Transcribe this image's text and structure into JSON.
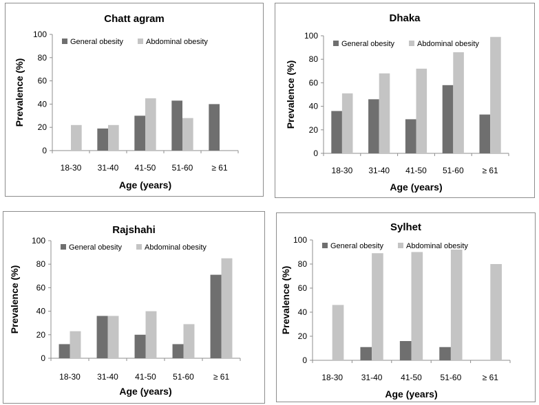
{
  "colors": {
    "general": "#6f6f6f",
    "abdominal": "#c4c4c4",
    "axis": "#8c8c8c"
  },
  "chart_data": [
    {
      "type": "bar",
      "title": "Chatt agram",
      "categories": [
        "18-30",
        "31-40",
        "41-50",
        "51-60",
        "≥ 61"
      ],
      "series": [
        {
          "name": "General obesity",
          "values": [
            0,
            19,
            30,
            43,
            40
          ]
        },
        {
          "name": "Abdominal obesity",
          "values": [
            22,
            22,
            45,
            28,
            0
          ]
        }
      ],
      "xlabel": "Age (years)",
      "ylabel": "Prevalence (%)",
      "ylim": [
        0,
        100
      ],
      "yticks": [
        0,
        20,
        40,
        60,
        80,
        100
      ],
      "legend": "top-left"
    },
    {
      "type": "bar",
      "title": "Dhaka",
      "categories": [
        "18-30",
        "31-40",
        "41-50",
        "51-60",
        "≥ 61"
      ],
      "series": [
        {
          "name": "General obesity",
          "values": [
            36,
            46,
            29,
            58,
            33
          ]
        },
        {
          "name": "Abdominal obesity",
          "values": [
            51,
            68,
            72,
            86,
            99
          ]
        }
      ],
      "xlabel": "Age (years)",
      "ylabel": "Prevalence (%)",
      "ylim": [
        0,
        100
      ],
      "yticks": [
        0,
        20,
        40,
        60,
        80,
        100
      ],
      "legend": "top-left"
    },
    {
      "type": "bar",
      "title": "Rajshahi",
      "categories": [
        "18-30",
        "31-40",
        "41-50",
        "51-60",
        "≥ 61"
      ],
      "series": [
        {
          "name": "General obesity",
          "values": [
            12,
            36,
            20,
            12,
            71
          ]
        },
        {
          "name": "Abdominal obesity",
          "values": [
            23,
            36,
            40,
            29,
            85
          ]
        }
      ],
      "xlabel": "Age (years)",
      "ylabel": "Prevalence (%)",
      "ylim": [
        0,
        100
      ],
      "yticks": [
        0,
        20,
        40,
        60,
        80,
        100
      ],
      "legend": "top-left"
    },
    {
      "type": "bar",
      "title": "Sylhet",
      "categories": [
        "18-30",
        "31-40",
        "41-50",
        "51-60",
        "≥ 61"
      ],
      "series": [
        {
          "name": "General obesity",
          "values": [
            0,
            11,
            16,
            11,
            0
          ]
        },
        {
          "name": "Abdominal obesity",
          "values": [
            46,
            89,
            90,
            92,
            80
          ]
        }
      ],
      "xlabel": "Age (years)",
      "ylabel": "Prevalence (%)",
      "ylim": [
        0,
        100
      ],
      "yticks": [
        0,
        20,
        40,
        60,
        80,
        100
      ],
      "legend": "top-left"
    }
  ]
}
